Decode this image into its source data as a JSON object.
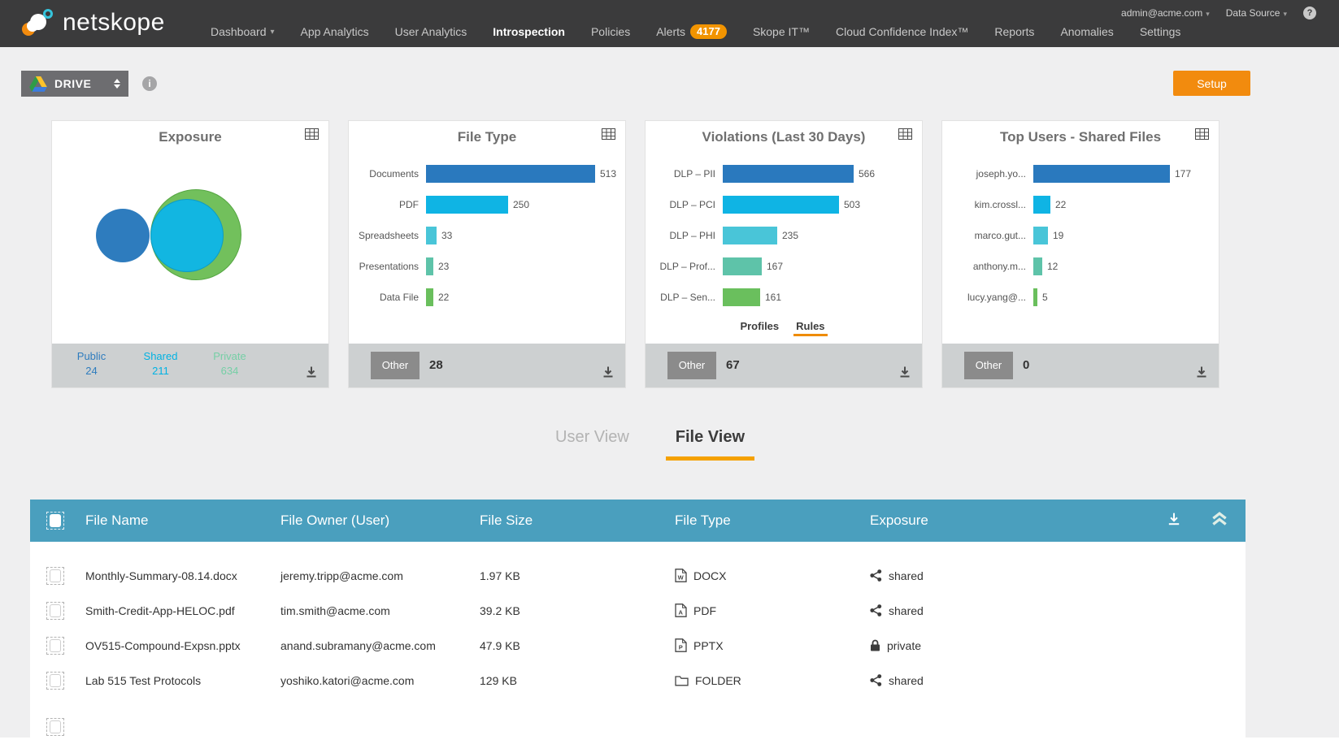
{
  "topbar": {
    "brand": "netskope",
    "account": {
      "email": "admin@acme.com",
      "data_source": "Data Source",
      "help": "?"
    },
    "nav": [
      {
        "label": "Dashboard",
        "caret": true
      },
      {
        "label": "App Analytics"
      },
      {
        "label": "User Analytics"
      },
      {
        "label": "Introspection",
        "active": true
      },
      {
        "label": "Policies"
      },
      {
        "label": "Alerts",
        "badge": "4177"
      },
      {
        "label": "Skope IT™"
      },
      {
        "label": "Cloud Confidence Index™"
      },
      {
        "label": "Reports"
      },
      {
        "label": "Anomalies"
      },
      {
        "label": "Settings"
      }
    ]
  },
  "toolbar": {
    "app_selector": "DRIVE",
    "setup_label": "Setup"
  },
  "bar_palette": [
    "#2a79be",
    "#0fb4e4",
    "#49c5d8",
    "#5ec3a9",
    "#6abf5d"
  ],
  "cards": [
    {
      "title": "Exposure",
      "type": "venn",
      "sets": [
        {
          "label": "Public",
          "value": 24,
          "color": "#2e7cbe",
          "text_color": "#2e7cbe"
        },
        {
          "label": "Shared",
          "value": 211,
          "color": "#12b6e1",
          "text_color": "#00b2e3"
        },
        {
          "label": "Private",
          "value": 634,
          "color": "#72c05c",
          "text_color": "#76cfa6"
        }
      ]
    },
    {
      "title": "File Type",
      "type": "bar",
      "categories": [
        "Documents",
        "PDF",
        "Spreadsheets",
        "Presentations",
        "Data File"
      ],
      "values": [
        513,
        250,
        33,
        23,
        22
      ],
      "other": {
        "label": "Other",
        "value": 28
      }
    },
    {
      "title": "Violations (Last 30 Days)",
      "type": "bar",
      "categories": [
        "DLP – PII",
        "DLP – PCI",
        "DLP – PHI",
        "DLP – Prof...",
        "DLP – Sen..."
      ],
      "values": [
        566,
        503,
        235,
        167,
        161
      ],
      "links": [
        {
          "label": "Profiles",
          "active": false
        },
        {
          "label": "Rules",
          "active": true
        }
      ],
      "other": {
        "label": "Other",
        "value": 67
      }
    },
    {
      "title": "Top Users - Shared Files",
      "type": "bar",
      "categories": [
        "joseph.yo...",
        "kim.crossl...",
        "marco.gut...",
        "anthony.m...",
        "lucy.yang@..."
      ],
      "values": [
        177,
        22,
        19,
        12,
        5
      ],
      "other": {
        "label": "Other",
        "value": 0
      }
    }
  ],
  "tabs": [
    {
      "label": "User View",
      "active": false
    },
    {
      "label": "File View",
      "active": true
    }
  ],
  "table": {
    "columns": [
      "File Name",
      "File Owner (User)",
      "File Size",
      "File Type",
      "Exposure"
    ],
    "rows": [
      {
        "name": "Monthly-Summary-08.14.docx",
        "owner": "jeremy.tripp@acme.com",
        "size": "1.97 KB",
        "type": "DOCX",
        "type_icon": "docx-file-icon",
        "exposure": "shared",
        "exposure_icon": "share-icon"
      },
      {
        "name": "Smith-Credit-App-HELOC.pdf",
        "owner": "tim.smith@acme.com",
        "size": "39.2 KB",
        "type": "PDF",
        "type_icon": "pdf-file-icon",
        "exposure": "shared",
        "exposure_icon": "share-icon"
      },
      {
        "name": "OV515-Compound-Expsn.pptx",
        "owner": "anand.subramany@acme.com",
        "size": "47.9 KB",
        "type": "PPTX",
        "type_icon": "pptx-file-icon",
        "exposure": "private",
        "exposure_icon": "lock-icon"
      },
      {
        "name": "Lab 515 Test Protocols",
        "owner": "yoshiko.katori@acme.com",
        "size": "129 KB",
        "type": "FOLDER",
        "type_icon": "folder-icon",
        "exposure": "shared",
        "exposure_icon": "share-icon"
      },
      {
        "name": "",
        "owner": "",
        "size": "",
        "type": "",
        "type_icon": "",
        "exposure": "",
        "exposure_icon": ""
      }
    ]
  }
}
